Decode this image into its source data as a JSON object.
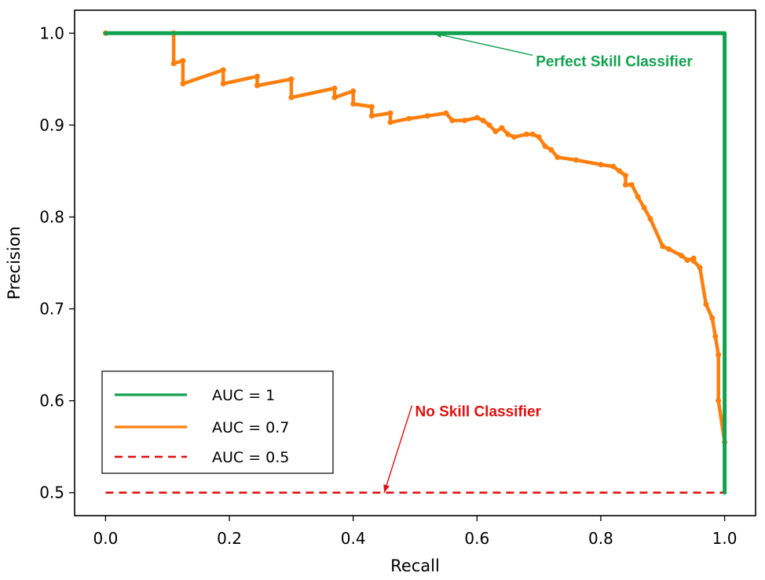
{
  "chart_data": {
    "type": "line",
    "title": "",
    "xlabel": "Recall",
    "ylabel": "Precision",
    "xlim": [
      -0.05,
      1.05
    ],
    "ylim": [
      0.475,
      1.025
    ],
    "xticks": [
      0.0,
      0.2,
      0.4,
      0.6,
      0.8,
      1.0
    ],
    "xtick_labels": [
      "0.0",
      "0.2",
      "0.4",
      "0.6",
      "0.8",
      "1.0"
    ],
    "yticks": [
      0.5,
      0.6,
      0.7,
      0.8,
      0.9,
      1.0
    ],
    "ytick_labels": [
      "0.5",
      "0.6",
      "0.7",
      "0.8",
      "0.9",
      "1.0"
    ],
    "grid": false,
    "legend_position": "lower-left",
    "series": [
      {
        "name": "AUC = 1",
        "color": "#12a150",
        "style": "solid",
        "x": [
          0.0,
          1.0,
          1.0
        ],
        "y": [
          1.0,
          1.0,
          0.5
        ]
      },
      {
        "name": "AUC = 0.7",
        "color": "#ff7f0e",
        "style": "solid-with-markers",
        "x": [
          0.0,
          0.11,
          0.11,
          0.125,
          0.125,
          0.19,
          0.19,
          0.245,
          0.245,
          0.3,
          0.3,
          0.37,
          0.37,
          0.4,
          0.4,
          0.43,
          0.43,
          0.46,
          0.46,
          0.49,
          0.52,
          0.55,
          0.56,
          0.58,
          0.6,
          0.61,
          0.62,
          0.63,
          0.64,
          0.65,
          0.66,
          0.68,
          0.69,
          0.7,
          0.71,
          0.72,
          0.73,
          0.76,
          0.8,
          0.82,
          0.83,
          0.84,
          0.84,
          0.85,
          0.86,
          0.87,
          0.88,
          0.9,
          0.91,
          0.93,
          0.94,
          0.95,
          0.95,
          0.96,
          0.97,
          0.98,
          0.985,
          0.99,
          0.99,
          1.0
        ],
        "y": [
          1.0,
          1.0,
          0.967,
          0.97,
          0.945,
          0.96,
          0.945,
          0.953,
          0.943,
          0.95,
          0.93,
          0.94,
          0.93,
          0.937,
          0.923,
          0.92,
          0.91,
          0.913,
          0.903,
          0.907,
          0.91,
          0.913,
          0.905,
          0.905,
          0.908,
          0.905,
          0.9,
          0.893,
          0.897,
          0.89,
          0.887,
          0.89,
          0.89,
          0.887,
          0.877,
          0.873,
          0.865,
          0.862,
          0.857,
          0.855,
          0.85,
          0.845,
          0.835,
          0.835,
          0.822,
          0.81,
          0.798,
          0.768,
          0.765,
          0.758,
          0.753,
          0.755,
          0.752,
          0.745,
          0.705,
          0.69,
          0.67,
          0.65,
          0.6,
          0.555
        ]
      },
      {
        "name": "AUC = 0.5",
        "color": "#e01010",
        "style": "dashed",
        "x": [
          0.0,
          1.0
        ],
        "y": [
          0.5,
          0.5
        ]
      }
    ],
    "annotations": [
      {
        "text": "Perfect Skill Classifier",
        "color": "#12a150",
        "point_x": 0.53,
        "point_y": 1.0,
        "text_x": 0.695,
        "text_y": 0.964
      },
      {
        "text": "No Skill Classifier",
        "color": "#e01010",
        "point_x": 0.45,
        "point_y": 0.5,
        "text_x": 0.5,
        "text_y": 0.583
      }
    ]
  }
}
